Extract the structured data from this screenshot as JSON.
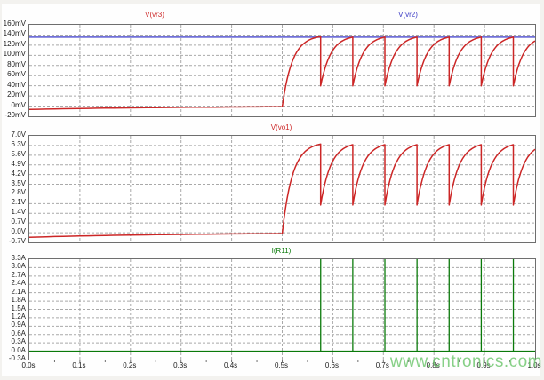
{
  "watermark": "www.cntronics.com",
  "colors": {
    "red": "#cc2626",
    "blue": "#3a3ac4",
    "blue_line": "#7070d8",
    "green": "#0a7a0a",
    "grid": "#a9a9a9",
    "axis": "#6e6e6e",
    "text": "#1a1a1a",
    "watermark": "#6cc66c"
  },
  "x_axis": {
    "unit": "s",
    "min": 0,
    "max": 1,
    "tick_labels": [
      "0.0s",
      "0.1s",
      "0.2s",
      "0.3s",
      "0.4s",
      "0.5s",
      "0.6s",
      "0.7s",
      "0.8s",
      "0.9s",
      "1.0s"
    ],
    "minor_tick_step": 0.05
  },
  "chart_data": [
    {
      "type": "line",
      "panel": "top",
      "legend": [
        {
          "label": "V(vr3)",
          "color": "red"
        },
        {
          "label": "V(vr2)",
          "color": "blue"
        }
      ],
      "unit": "mV",
      "ymin": -20,
      "ymax": 160,
      "ytick_labels": [
        "160mV",
        "140mV",
        "120mV",
        "100mV",
        "80mV",
        "60mV",
        "40mV",
        "20mV",
        "0mV",
        "-20mV"
      ],
      "grid": true,
      "series": [
        {
          "name": "V(vr2)",
          "shape": "constant",
          "value": 136,
          "color": "blue_line",
          "width": 2,
          "description": "constant reference level ~136mV across 0-1s"
        },
        {
          "name": "V(vr3)",
          "shape": "relaxation",
          "color": "red",
          "width": 1.5,
          "baseline": {
            "start": -6.5,
            "end": -1.2,
            "tau": 0.3
          },
          "rise_start": 0.5,
          "asymptote": 140,
          "peak": 136,
          "reset": 40,
          "tau": 0.02,
          "drop_times": [
            0.576,
            0.6395,
            0.703,
            0.7665,
            0.83,
            0.8935,
            0.957
          ],
          "description": "flat just below 0mV until 0.5s, then exponential charging teeth 40mV->136mV"
        }
      ]
    },
    {
      "type": "line",
      "panel": "middle",
      "legend": [
        {
          "label": "V(vo1)",
          "color": "red"
        }
      ],
      "unit": "V",
      "ymin": -0.7,
      "ymax": 7.0,
      "ytick_labels": [
        "7.0V",
        "6.3V",
        "5.6V",
        "4.9V",
        "4.2V",
        "3.5V",
        "2.8V",
        "2.1V",
        "1.4V",
        "0.7V",
        "0.0V",
        "-0.7V"
      ],
      "grid": true,
      "series": [
        {
          "name": "V(vo1)",
          "shape": "relaxation",
          "color": "red",
          "width": 1.5,
          "baseline": {
            "start": -0.33,
            "end": -0.06,
            "tau": 0.3
          },
          "rise_start": 0.5,
          "asymptote": 6.55,
          "peak": 6.35,
          "reset": 2.0,
          "tau": 0.02,
          "drop_times": [
            0.576,
            0.6395,
            0.703,
            0.7665,
            0.83,
            0.8935,
            0.957
          ],
          "description": "flat ~-0.3V until 0.5s, then exponential charging teeth 2.0V->6.3V"
        }
      ]
    },
    {
      "type": "line",
      "panel": "bottom",
      "legend": [
        {
          "label": "I(R11)",
          "color": "green"
        }
      ],
      "unit": "A",
      "ymin": -0.3,
      "ymax": 3.3,
      "ytick_labels": [
        "3.3A",
        "3.0A",
        "2.7A",
        "2.4A",
        "2.1A",
        "1.8A",
        "1.5A",
        "1.2A",
        "0.9A",
        "0.6A",
        "0.3A",
        "0.0A",
        "-0.3A"
      ],
      "grid": true,
      "series": [
        {
          "name": "I(R11)",
          "shape": "spikes",
          "color": "green",
          "width": 1.3,
          "baseline": 0,
          "spike_height": 3.3,
          "spike_times": [
            0.576,
            0.6395,
            0.703,
            0.7665,
            0.83,
            0.8935,
            0.957
          ],
          "description": "0A baseline with narrow 3.3A discharge spikes"
        }
      ]
    }
  ]
}
